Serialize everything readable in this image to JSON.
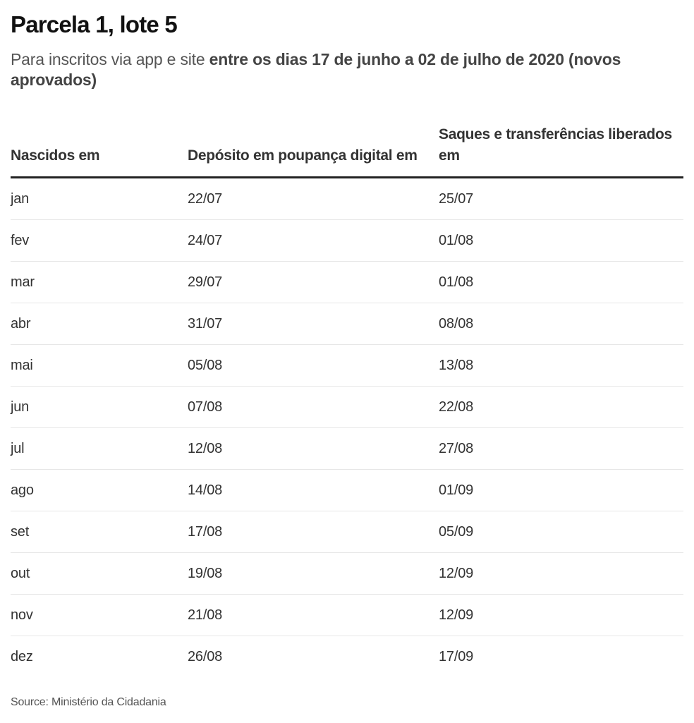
{
  "header": {
    "title": "Parcela 1, lote 5",
    "subtitle_plain": "Para inscritos via app e site ",
    "subtitle_bold": "entre os dias 17 de junho a 02 de julho de 2020 (novos aprovados)"
  },
  "table": {
    "columns": [
      "Nascidos em",
      "Depósito em poupança digital em",
      "Saques e transferências liberados em"
    ],
    "rows": [
      [
        "jan",
        "22/07",
        "25/07"
      ],
      [
        "fev",
        "24/07",
        "01/08"
      ],
      [
        "mar",
        "29/07",
        "01/08"
      ],
      [
        "abr",
        "31/07",
        "08/08"
      ],
      [
        "mai",
        "05/08",
        "13/08"
      ],
      [
        "jun",
        "07/08",
        "22/08"
      ],
      [
        "jul",
        "12/08",
        "27/08"
      ],
      [
        "ago",
        "14/08",
        "01/09"
      ],
      [
        "set",
        "17/08",
        "05/09"
      ],
      [
        "out",
        "19/08",
        "12/09"
      ],
      [
        "nov",
        "21/08",
        "12/09"
      ],
      [
        "dez",
        "26/08",
        "17/09"
      ]
    ]
  },
  "footer": {
    "source": "Source: Ministério da Cidadania"
  },
  "chart_data": {
    "type": "table",
    "title": "Parcela 1, lote 5",
    "subtitle": "Para inscritos via app e site entre os dias 17 de junho a 02 de julho de 2020 (novos aprovados)",
    "columns": [
      "Nascidos em",
      "Depósito em poupança digital em",
      "Saques e transferências liberados em"
    ],
    "rows": [
      [
        "jan",
        "22/07",
        "25/07"
      ],
      [
        "fev",
        "24/07",
        "01/08"
      ],
      [
        "mar",
        "29/07",
        "01/08"
      ],
      [
        "abr",
        "31/07",
        "08/08"
      ],
      [
        "mai",
        "05/08",
        "13/08"
      ],
      [
        "jun",
        "07/08",
        "22/08"
      ],
      [
        "jul",
        "12/08",
        "27/08"
      ],
      [
        "ago",
        "14/08",
        "01/09"
      ],
      [
        "set",
        "17/08",
        "05/09"
      ],
      [
        "out",
        "19/08",
        "12/09"
      ],
      [
        "nov",
        "21/08",
        "12/09"
      ],
      [
        "dez",
        "26/08",
        "17/09"
      ]
    ],
    "source": "Source: Ministério da Cidadania"
  }
}
